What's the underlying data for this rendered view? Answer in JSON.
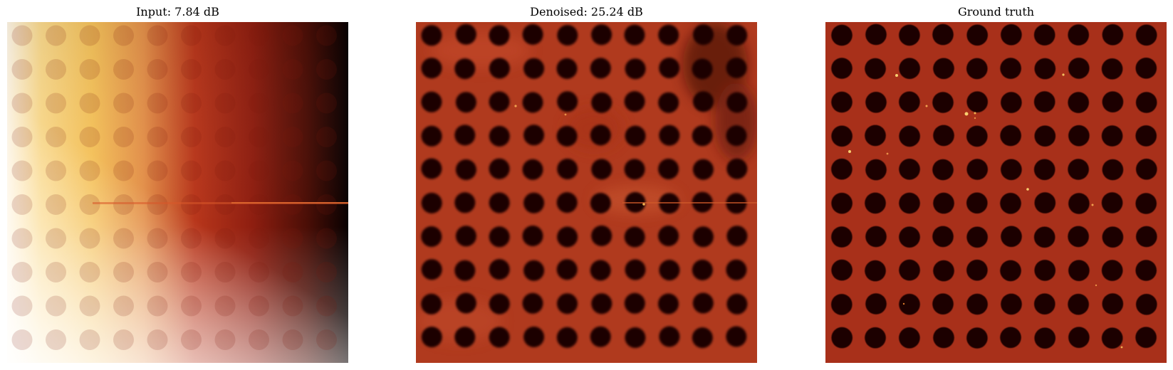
{
  "panels": [
    {
      "title": "Input: 7.84 dB",
      "kind": "input"
    },
    {
      "title": "Denoised: 25.24 dB",
      "kind": "denoised"
    },
    {
      "title": "Ground truth",
      "kind": "ground-truth"
    }
  ],
  "image_grid": {
    "rows": 10,
    "cols": 10
  },
  "colors": {
    "background": "#ffffff",
    "substrate": "#b0341a",
    "hole": "#1a0602",
    "highlight": "#f8d070",
    "colormap": [
      "#ffffff",
      "#f6c25a",
      "#b3301a",
      "#000000"
    ]
  }
}
